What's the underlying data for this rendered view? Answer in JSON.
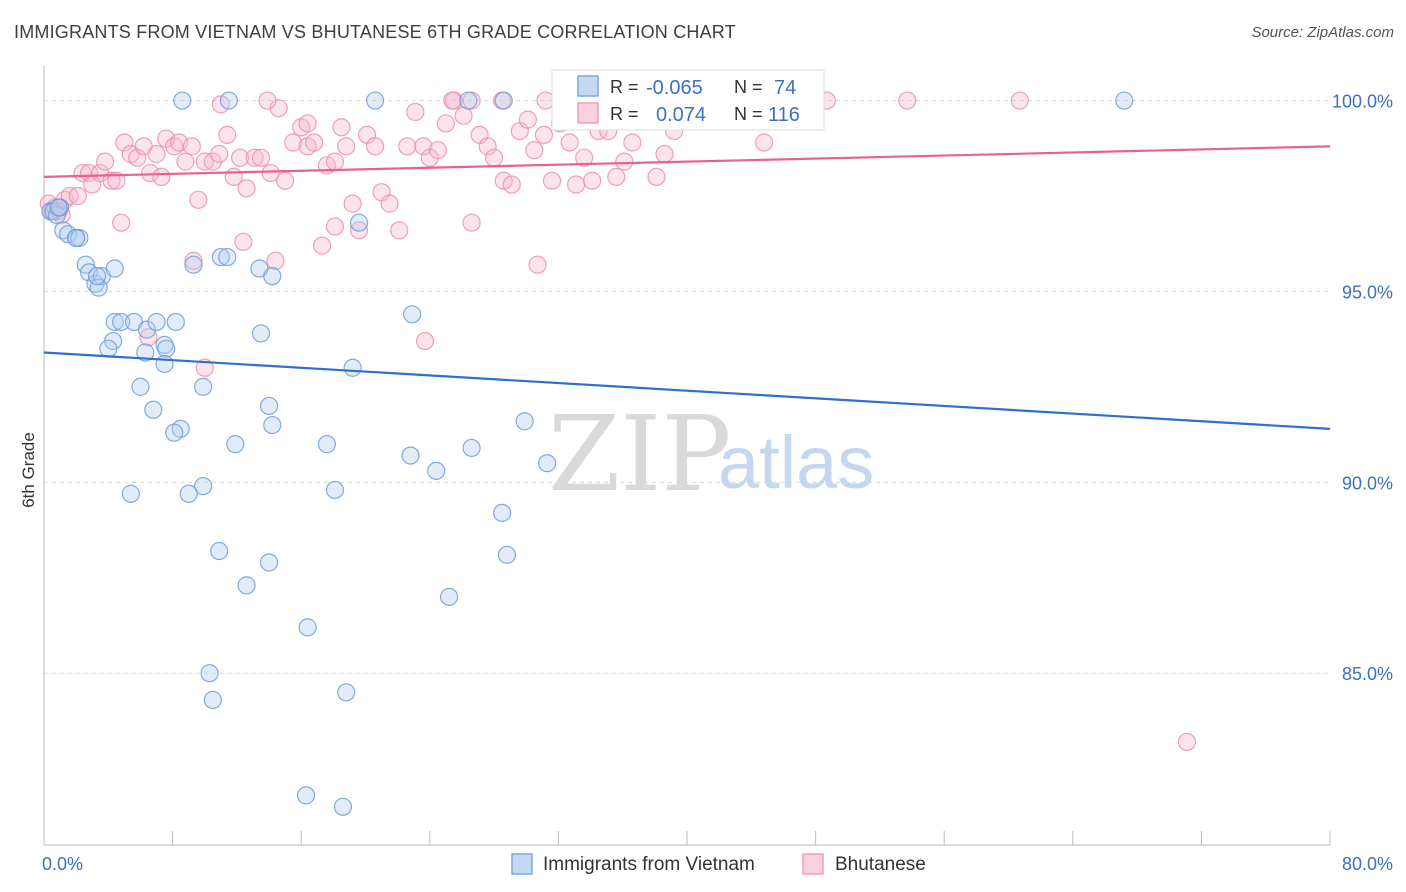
{
  "title": "IMMIGRANTS FROM VIETNAM VS BHUTANESE 6TH GRADE CORRELATION CHART",
  "source": "Source: ZipAtlas.com",
  "watermark": {
    "zip": "ZIP",
    "atlas": "atlas"
  },
  "colors": {
    "blue": "#7ea6e0",
    "blue_line": "#2f6fcf",
    "pink": "#f2a0ba",
    "pink_line": "#e8628c",
    "grid": "#d8d8d8",
    "tick_text": "#3d6fc6"
  },
  "stats": {
    "r_label": "R =",
    "n_label": "N =",
    "rows": [
      {
        "r": "-0.065",
        "n": "74",
        "color": "blue"
      },
      {
        "r": "0.074",
        "n": "116",
        "color": "pink"
      }
    ]
  },
  "chart_data": {
    "type": "scatter",
    "title": "IMMIGRANTS FROM VIETNAM VS BHUTANESE 6TH GRADE CORRELATION CHART",
    "xlabel": "",
    "ylabel": "6th Grade",
    "xlim": [
      0,
      80
    ],
    "ylim": [
      80.5,
      100.8
    ],
    "x_ticks": [
      0,
      80
    ],
    "x_tick_labels": [
      "0.0%",
      "80.0%"
    ],
    "y_ticks": [
      85,
      90,
      95,
      100
    ],
    "y_tick_labels": [
      "85.0%",
      "90.0%",
      "95.0%",
      "100.0%"
    ],
    "grid": true,
    "legend_position": "bottom",
    "series": [
      {
        "name": "Immigrants from Vietnam",
        "color": "#7ea6e0",
        "trend": {
          "x": [
            0,
            80
          ],
          "y": [
            93.4,
            91.4
          ]
        },
        "points": [
          [
            0.4,
            97.1
          ],
          [
            0.6,
            97.1
          ],
          [
            0.8,
            97.0
          ],
          [
            1.0,
            97.2
          ],
          [
            1.2,
            96.6
          ],
          [
            1.5,
            96.5
          ],
          [
            2.0,
            96.4
          ],
          [
            2.2,
            96.4
          ],
          [
            2.6,
            95.7
          ],
          [
            2.8,
            95.5
          ],
          [
            3.2,
            95.2
          ],
          [
            3.6,
            95.4
          ],
          [
            4.4,
            95.6
          ],
          [
            3.4,
            95.1
          ],
          [
            8.6,
            100
          ],
          [
            11.5,
            100
          ],
          [
            20.6,
            100
          ],
          [
            26.4,
            100
          ],
          [
            28.6,
            100
          ],
          [
            67.2,
            100
          ],
          [
            19.6,
            96.8
          ],
          [
            11.0,
            95.9
          ],
          [
            11.4,
            95.9
          ],
          [
            13.4,
            95.6
          ],
          [
            14.2,
            95.4
          ],
          [
            9.3,
            95.7
          ],
          [
            4.4,
            94.2
          ],
          [
            4.8,
            94.2
          ],
          [
            5.6,
            94.2
          ],
          [
            8.2,
            94.2
          ],
          [
            6.4,
            94.0
          ],
          [
            7.0,
            94.2
          ],
          [
            4.3,
            93.7
          ],
          [
            4.0,
            93.5
          ],
          [
            6.3,
            93.4
          ],
          [
            7.5,
            93.6
          ],
          [
            7.6,
            93.5
          ],
          [
            7.5,
            93.1
          ],
          [
            13.5,
            93.9
          ],
          [
            19.2,
            93.0
          ],
          [
            22.9,
            94.4
          ],
          [
            6.0,
            92.5
          ],
          [
            9.9,
            92.5
          ],
          [
            6.8,
            91.9
          ],
          [
            14.0,
            92.0
          ],
          [
            8.5,
            91.4
          ],
          [
            8.1,
            91.3
          ],
          [
            14.2,
            91.5
          ],
          [
            11.9,
            91.0
          ],
          [
            17.6,
            91.0
          ],
          [
            22.8,
            90.7
          ],
          [
            26.6,
            90.9
          ],
          [
            29.9,
            91.6
          ],
          [
            31.3,
            90.5
          ],
          [
            24.4,
            90.3
          ],
          [
            9.9,
            89.9
          ],
          [
            5.4,
            89.7
          ],
          [
            9.0,
            89.7
          ],
          [
            18.1,
            89.8
          ],
          [
            28.5,
            89.2
          ],
          [
            10.9,
            88.2
          ],
          [
            14.0,
            87.9
          ],
          [
            12.6,
            87.3
          ],
          [
            28.8,
            88.1
          ],
          [
            25.2,
            87.0
          ],
          [
            16.4,
            86.2
          ],
          [
            10.3,
            85.0
          ],
          [
            10.5,
            84.3
          ],
          [
            18.8,
            84.5
          ],
          [
            16.3,
            81.8
          ],
          [
            18.6,
            81.5
          ],
          [
            2.0,
            96.4
          ],
          [
            3.3,
            95.4
          ],
          [
            0.9,
            97.2
          ]
        ]
      },
      {
        "name": "Bhutanese",
        "color": "#f2a0ba",
        "trend": {
          "x": [
            0,
            80
          ],
          "y": [
            98.0,
            98.8
          ]
        },
        "points": [
          [
            0.3,
            97.3
          ],
          [
            0.5,
            97.1
          ],
          [
            0.7,
            97.2
          ],
          [
            0.9,
            97.1
          ],
          [
            1.1,
            97.0
          ],
          [
            1.3,
            97.4
          ],
          [
            1.6,
            97.5
          ],
          [
            2.1,
            97.5
          ],
          [
            2.4,
            98.1
          ],
          [
            2.8,
            98.1
          ],
          [
            3.0,
            97.8
          ],
          [
            3.5,
            98.1
          ],
          [
            3.8,
            98.4
          ],
          [
            4.2,
            97.9
          ],
          [
            4.5,
            97.9
          ],
          [
            4.8,
            96.8
          ],
          [
            5.0,
            98.9
          ],
          [
            5.4,
            98.6
          ],
          [
            5.8,
            98.5
          ],
          [
            6.2,
            98.8
          ],
          [
            6.6,
            98.1
          ],
          [
            7.0,
            98.6
          ],
          [
            7.3,
            98.0
          ],
          [
            7.6,
            99.0
          ],
          [
            8.1,
            98.8
          ],
          [
            8.4,
            98.9
          ],
          [
            8.8,
            98.4
          ],
          [
            9.2,
            98.8
          ],
          [
            9.6,
            97.4
          ],
          [
            10.0,
            98.4
          ],
          [
            10.5,
            98.4
          ],
          [
            10.9,
            98.6
          ],
          [
            11.4,
            99.1
          ],
          [
            11.8,
            98.0
          ],
          [
            12.2,
            98.5
          ],
          [
            12.6,
            97.7
          ],
          [
            13.1,
            98.5
          ],
          [
            13.5,
            98.5
          ],
          [
            14.1,
            98.1
          ],
          [
            14.6,
            99.8
          ],
          [
            15.0,
            97.9
          ],
          [
            15.5,
            98.9
          ],
          [
            16.0,
            99.3
          ],
          [
            16.4,
            98.8
          ],
          [
            16.8,
            98.9
          ],
          [
            17.3,
            96.2
          ],
          [
            17.6,
            98.3
          ],
          [
            18.1,
            98.4
          ],
          [
            18.5,
            99.3
          ],
          [
            18.8,
            98.8
          ],
          [
            19.2,
            97.3
          ],
          [
            19.6,
            96.6
          ],
          [
            20.1,
            99.1
          ],
          [
            20.6,
            98.8
          ],
          [
            21.0,
            97.6
          ],
          [
            21.5,
            97.3
          ],
          [
            22.1,
            96.6
          ],
          [
            22.6,
            98.8
          ],
          [
            23.1,
            99.7
          ],
          [
            23.6,
            98.8
          ],
          [
            24.0,
            98.5
          ],
          [
            24.5,
            98.7
          ],
          [
            25.0,
            99.4
          ],
          [
            25.5,
            100
          ],
          [
            26.1,
            99.6
          ],
          [
            26.6,
            100
          ],
          [
            27.1,
            99.1
          ],
          [
            27.6,
            98.8
          ],
          [
            28.0,
            98.5
          ],
          [
            28.6,
            97.9
          ],
          [
            29.1,
            97.8
          ],
          [
            29.6,
            99.2
          ],
          [
            30.1,
            99.5
          ],
          [
            30.5,
            98.7
          ],
          [
            31.1,
            99.1
          ],
          [
            31.6,
            97.9
          ],
          [
            32.1,
            99.4
          ],
          [
            32.7,
            98.9
          ],
          [
            33.1,
            97.8
          ],
          [
            33.6,
            98.5
          ],
          [
            34.1,
            97.9
          ],
          [
            34.5,
            99.2
          ],
          [
            35.1,
            99.2
          ],
          [
            35.6,
            98.0
          ],
          [
            36.1,
            98.4
          ],
          [
            36.6,
            98.9
          ],
          [
            37.1,
            99.5
          ],
          [
            37.5,
            99.5
          ],
          [
            38.1,
            98.0
          ],
          [
            38.6,
            98.6
          ],
          [
            39.2,
            99.2
          ],
          [
            40.5,
            99.5
          ],
          [
            42.7,
            100
          ],
          [
            43.9,
            100
          ],
          [
            53.7,
            100
          ],
          [
            60.7,
            100
          ],
          [
            9.3,
            95.8
          ],
          [
            12.4,
            96.3
          ],
          [
            14.4,
            95.8
          ],
          [
            16.4,
            99.4
          ],
          [
            18.1,
            96.7
          ],
          [
            23.7,
            93.7
          ],
          [
            26.6,
            96.8
          ],
          [
            30.7,
            95.7
          ],
          [
            10.0,
            93.0
          ],
          [
            6.5,
            93.8
          ],
          [
            11.0,
            99.9
          ],
          [
            13.9,
            100
          ],
          [
            25.4,
            100
          ],
          [
            28.5,
            100
          ],
          [
            31.2,
            100
          ],
          [
            41.9,
            100
          ],
          [
            44.8,
            98.9
          ],
          [
            46.6,
            99.8
          ],
          [
            48.7,
            100
          ],
          [
            71.1,
            83.2
          ]
        ]
      }
    ]
  },
  "legend": {
    "items": [
      {
        "label": "Immigrants from Vietnam",
        "color": "blue"
      },
      {
        "label": "Bhutanese",
        "color": "pink"
      }
    ]
  }
}
